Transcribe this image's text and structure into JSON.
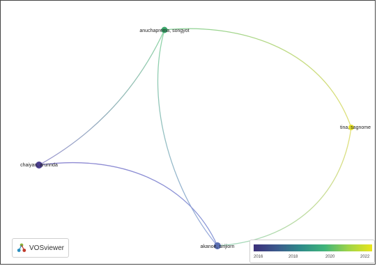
{
  "network": {
    "nodes": [
      {
        "id": "anuchaprema",
        "label": "anuchaprema, songyot",
        "color": "#3aa56a"
      },
      {
        "id": "tina",
        "label": "tina, sagnome",
        "color": "#e3df2a"
      },
      {
        "id": "chaiyan",
        "label": "chaiyan, arunnda",
        "color": "#4b3f8f"
      },
      {
        "id": "akanoe",
        "label": "akanoe, sirijiorn",
        "color": "#5b6fb2"
      }
    ],
    "edges": [
      {
        "from": "anuchaprema",
        "to": "tina"
      },
      {
        "from": "anuchaprema",
        "to": "chaiyan"
      },
      {
        "from": "anuchaprema",
        "to": "akanoe"
      },
      {
        "from": "chaiyan",
        "to": "akanoe"
      },
      {
        "from": "tina",
        "to": "akanoe"
      }
    ]
  },
  "branding": {
    "app_name": "VOSviewer",
    "logo_icon": "vosviewer-logo-icon"
  },
  "color_scale": {
    "ticks": [
      "2016",
      "2018",
      "2020",
      "2022"
    ],
    "colors": [
      "#3b2f7a",
      "#2e8b89",
      "#3fb47a",
      "#e9e51b"
    ]
  }
}
